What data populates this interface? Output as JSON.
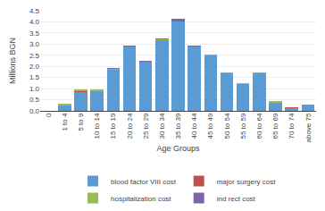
{
  "chart_data": {
    "type": "bar",
    "stacked": true,
    "categories": [
      "0",
      "1 to 4",
      "5 to 9",
      "10 to 14",
      "15 to 19",
      "20 to 24",
      "25 to 29",
      "30 to 34",
      "35 to 39",
      "40 to 44",
      "45 to 49",
      "50 to 54",
      "55 to 59",
      "60 to 64",
      "65 to 69",
      "70 to 74",
      "above 75"
    ],
    "series": [
      {
        "name": "blood factor VIII cost",
        "color": "#5b9bd5",
        "values": [
          0.0,
          0.28,
          0.87,
          0.9,
          1.87,
          2.9,
          2.22,
          3.2,
          4.05,
          2.9,
          2.5,
          1.7,
          1.22,
          1.7,
          0.4,
          0.14,
          0.27
        ]
      },
      {
        "name": "major surgery cost",
        "color": "#c0504d",
        "values": [
          0.0,
          0.0,
          0.02,
          0.01,
          0.01,
          0.01,
          0.0,
          0.01,
          0.01,
          0.01,
          0.0,
          0.0,
          0.0,
          0.0,
          0.0,
          0.01,
          0.0
        ]
      },
      {
        "name": "hospitalization cost",
        "color": "#9bbb59",
        "values": [
          0.0,
          0.01,
          0.04,
          0.02,
          0.02,
          0.01,
          0.01,
          0.02,
          0.02,
          0.01,
          0.03,
          0.01,
          0.01,
          0.01,
          0.01,
          0.0,
          0.0
        ]
      },
      {
        "name": "ind rect cost",
        "color": "#8064a2",
        "values": [
          0.0,
          0.0,
          0.0,
          0.0,
          0.01,
          0.01,
          0.01,
          0.01,
          0.04,
          0.01,
          0.0,
          0.0,
          0.0,
          0.0,
          0.0,
          0.0,
          0.0
        ]
      }
    ],
    "xlabel": "Age Groups",
    "ylabel": "Millions BGN",
    "ylim": [
      0,
      4.5
    ],
    "yticks": [
      {
        "value": 0,
        "label": "0.0"
      },
      0.5,
      {
        "value": 1.0,
        "label": "1.0"
      },
      1.5,
      {
        "value": 2.0,
        "label": "2.0"
      },
      2.5,
      {
        "value": 3.0,
        "label": "3.0"
      },
      3.5,
      {
        "value": 4.0,
        "label": "4.0"
      },
      4.5
    ],
    "grid": true,
    "legend": "bottom"
  }
}
